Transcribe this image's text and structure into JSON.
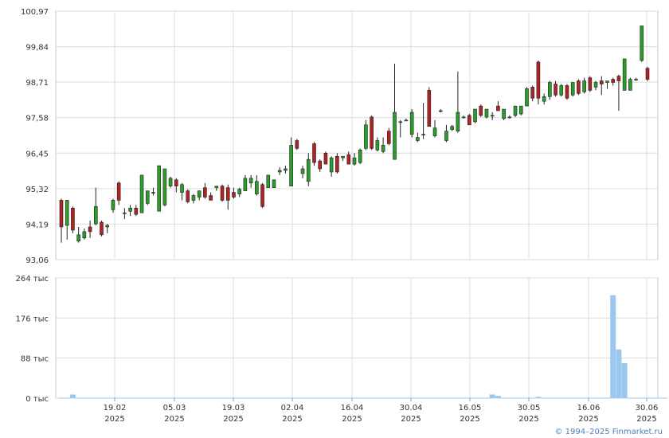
{
  "chart_data": [
    {
      "type": "candlestick",
      "y_ticks": [
        "100,97",
        "99,84",
        "98,71",
        "97,58",
        "96,45",
        "95,32",
        "94,19",
        "93,06"
      ],
      "ylim": [
        93.06,
        100.97
      ],
      "x_ticks": [
        {
          "day": "19.02",
          "year": "2025"
        },
        {
          "day": "05.03",
          "year": "2025"
        },
        {
          "day": "19.03",
          "year": "2025"
        },
        {
          "day": "02.04",
          "year": "2025"
        },
        {
          "day": "16.04",
          "year": "2025"
        },
        {
          "day": "30.04",
          "year": "2025"
        },
        {
          "day": "16.05",
          "year": "2025"
        },
        {
          "day": "30.05",
          "year": "2025"
        },
        {
          "day": "16.06",
          "year": "2025"
        },
        {
          "day": "30.06",
          "year": "2025"
        }
      ],
      "up_color": "#2a9d2a",
      "down_color": "#b22222",
      "candles": [
        [
          94.95,
          95.0,
          93.6,
          94.1
        ],
        [
          94.15,
          94.95,
          93.7,
          94.95
        ],
        [
          94.7,
          94.75,
          93.9,
          94.0
        ],
        [
          93.65,
          94.1,
          93.6,
          93.85
        ],
        [
          93.75,
          94.05,
          93.7,
          93.95
        ],
        [
          94.1,
          94.3,
          93.75,
          93.95
        ],
        [
          94.2,
          95.35,
          94.15,
          94.75
        ],
        [
          94.25,
          94.3,
          93.8,
          93.85
        ],
        [
          94.1,
          94.2,
          93.9,
          94.15
        ],
        [
          94.65,
          95.0,
          94.55,
          94.95
        ],
        [
          95.5,
          95.55,
          94.8,
          94.95
        ],
        [
          94.55,
          94.7,
          94.35,
          94.55
        ],
        [
          94.6,
          94.8,
          94.45,
          94.7
        ],
        [
          94.7,
          94.8,
          94.45,
          94.5
        ],
        [
          94.55,
          95.75,
          94.55,
          95.75
        ],
        [
          94.85,
          95.25,
          94.8,
          95.25
        ],
        [
          95.2,
          95.35,
          95.1,
          95.2
        ],
        [
          94.6,
          96.05,
          94.6,
          96.05
        ],
        [
          94.8,
          95.95,
          94.75,
          95.95
        ],
        [
          95.4,
          95.7,
          95.35,
          95.65
        ],
        [
          95.6,
          95.65,
          95.2,
          95.4
        ],
        [
          95.2,
          95.5,
          94.95,
          95.45
        ],
        [
          95.25,
          95.3,
          94.85,
          94.9
        ],
        [
          94.95,
          95.15,
          94.85,
          95.1
        ],
        [
          95.05,
          95.25,
          94.95,
          95.25
        ],
        [
          95.35,
          95.5,
          95.0,
          95.05
        ],
        [
          95.1,
          95.2,
          94.95,
          94.95
        ],
        [
          95.35,
          95.4,
          95.25,
          95.4
        ],
        [
          95.4,
          95.45,
          94.9,
          94.95
        ],
        [
          95.35,
          95.45,
          94.65,
          94.95
        ],
        [
          95.2,
          95.35,
          95.0,
          95.05
        ],
        [
          95.15,
          95.35,
          95.05,
          95.3
        ],
        [
          95.25,
          95.75,
          95.25,
          95.65
        ],
        [
          95.5,
          95.75,
          95.35,
          95.65
        ],
        [
          95.15,
          95.75,
          95.1,
          95.55
        ],
        [
          95.45,
          95.5,
          94.7,
          94.75
        ],
        [
          95.35,
          95.75,
          95.35,
          95.75
        ],
        [
          95.35,
          95.6,
          95.35,
          95.6
        ],
        [
          95.85,
          96.0,
          95.75,
          95.9
        ],
        [
          95.9,
          96.05,
          95.8,
          95.95
        ],
        [
          95.4,
          96.95,
          95.4,
          96.7
        ],
        [
          96.85,
          96.9,
          96.55,
          96.6
        ],
        [
          95.8,
          96.05,
          95.65,
          95.95
        ],
        [
          95.55,
          96.45,
          95.4,
          96.25
        ],
        [
          96.75,
          96.8,
          96.05,
          96.15
        ],
        [
          96.2,
          96.25,
          95.85,
          95.95
        ],
        [
          96.45,
          96.5,
          96.1,
          96.1
        ],
        [
          95.85,
          96.35,
          95.7,
          96.3
        ],
        [
          96.35,
          96.45,
          95.8,
          95.85
        ],
        [
          96.3,
          96.35,
          96.2,
          96.35
        ],
        [
          96.4,
          96.5,
          96.1,
          96.1
        ],
        [
          96.1,
          96.45,
          96.05,
          96.3
        ],
        [
          96.15,
          96.6,
          96.1,
          96.55
        ],
        [
          96.6,
          97.5,
          96.55,
          97.35
        ],
        [
          97.6,
          97.65,
          96.55,
          96.6
        ],
        [
          96.55,
          96.95,
          96.5,
          96.85
        ],
        [
          96.5,
          96.95,
          96.45,
          96.7
        ],
        [
          97.15,
          97.25,
          96.7,
          96.75
        ],
        [
          96.25,
          99.3,
          96.25,
          97.75
        ],
        [
          97.45,
          97.5,
          96.95,
          97.45
        ],
        [
          97.5,
          97.55,
          97.5,
          97.5
        ],
        [
          97.05,
          97.85,
          96.95,
          97.75
        ],
        [
          96.85,
          97.1,
          96.8,
          96.95
        ],
        [
          97.05,
          98.05,
          96.9,
          97.05
        ],
        [
          98.45,
          98.55,
          97.3,
          97.3
        ],
        [
          97.0,
          97.5,
          96.95,
          97.25
        ],
        [
          97.8,
          97.85,
          97.75,
          97.8
        ],
        [
          96.85,
          97.35,
          96.8,
          97.15
        ],
        [
          97.2,
          97.35,
          97.15,
          97.3
        ],
        [
          97.15,
          99.05,
          97.1,
          97.75
        ],
        [
          97.6,
          97.65,
          97.55,
          97.6
        ],
        [
          97.65,
          97.7,
          97.35,
          97.35
        ],
        [
          97.45,
          97.85,
          97.4,
          97.85
        ],
        [
          97.95,
          98.0,
          97.6,
          97.65
        ],
        [
          97.6,
          97.85,
          97.55,
          97.85
        ],
        [
          97.65,
          97.75,
          97.5,
          97.65
        ],
        [
          97.95,
          98.1,
          97.8,
          97.8
        ],
        [
          97.55,
          97.85,
          97.5,
          97.85
        ],
        [
          97.6,
          97.65,
          97.55,
          97.6
        ],
        [
          97.65,
          97.95,
          97.6,
          97.95
        ],
        [
          97.7,
          97.95,
          97.65,
          97.95
        ],
        [
          97.95,
          98.55,
          97.95,
          98.5
        ],
        [
          98.55,
          98.6,
          98.1,
          98.2
        ],
        [
          99.35,
          99.4,
          98.0,
          98.2
        ],
        [
          98.1,
          98.35,
          98.0,
          98.25
        ],
        [
          98.25,
          98.75,
          98.15,
          98.7
        ],
        [
          98.65,
          98.75,
          98.25,
          98.3
        ],
        [
          98.3,
          98.65,
          98.25,
          98.6
        ],
        [
          98.6,
          98.65,
          98.15,
          98.2
        ],
        [
          98.3,
          98.7,
          98.25,
          98.7
        ],
        [
          98.75,
          98.8,
          98.3,
          98.35
        ],
        [
          98.4,
          98.85,
          98.35,
          98.75
        ],
        [
          98.85,
          98.9,
          98.4,
          98.45
        ],
        [
          98.55,
          98.75,
          98.45,
          98.7
        ],
        [
          98.75,
          98.9,
          98.3,
          98.65
        ],
        [
          98.7,
          98.75,
          98.5,
          98.75
        ],
        [
          98.8,
          98.85,
          98.6,
          98.7
        ],
        [
          98.9,
          98.95,
          97.8,
          98.75
        ],
        [
          98.45,
          99.45,
          98.45,
          99.45
        ],
        [
          98.45,
          98.85,
          98.45,
          98.8
        ],
        [
          98.8,
          98.85,
          98.75,
          98.8
        ],
        [
          99.4,
          100.5,
          99.35,
          100.5
        ],
        [
          99.15,
          99.2,
          98.75,
          98.8
        ]
      ]
    },
    {
      "type": "bar",
      "y_ticks": [
        "264 тыс",
        "176 тыс",
        "88 тыс",
        "0 тыс"
      ],
      "ylim": [
        0,
        264
      ],
      "unit": "тыс",
      "bar_color": "#9cc8f0",
      "volumes": [
        1,
        1,
        8,
        1,
        1,
        1,
        1,
        1,
        1,
        1,
        1,
        1,
        1,
        1,
        1,
        1,
        1,
        1,
        1,
        1,
        1,
        1,
        1,
        1,
        1,
        1,
        1,
        1,
        1,
        1,
        1,
        1,
        1,
        1,
        1,
        1,
        1,
        1,
        1,
        1,
        1,
        1,
        1,
        1,
        1,
        1,
        1,
        1,
        1,
        1,
        1,
        1,
        1,
        1,
        1,
        1,
        1,
        1,
        1,
        1,
        1,
        1,
        1,
        1,
        1,
        1,
        1,
        1,
        1,
        1,
        1,
        1,
        1,
        1,
        1,
        8,
        5,
        1,
        1,
        1,
        1,
        1,
        1,
        3,
        1,
        1,
        1,
        1,
        1,
        1,
        1,
        1,
        1,
        1,
        1,
        1,
        226,
        107,
        77,
        1,
        1,
        1,
        1,
        1,
        1,
        1
      ]
    }
  ],
  "copyright": "© 1994–2025 Finmarket.ru"
}
